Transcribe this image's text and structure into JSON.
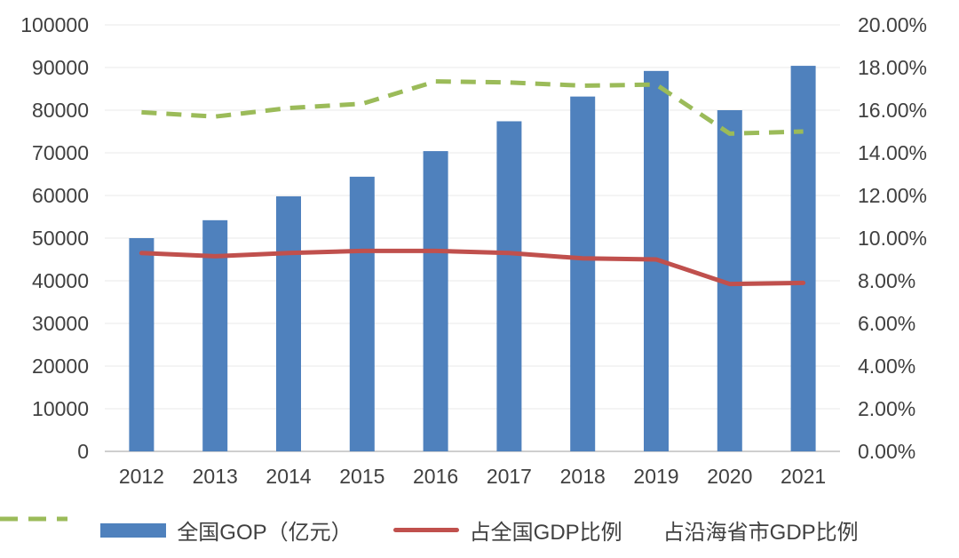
{
  "chart_data": {
    "type": "combo",
    "title": "",
    "categories": [
      "2012",
      "2013",
      "2014",
      "2015",
      "2016",
      "2017",
      "2018",
      "2019",
      "2020",
      "2021"
    ],
    "series": [
      {
        "name": "全国GOP（亿元）",
        "type": "bar",
        "axis": "left",
        "color": "#4F81BD",
        "values": [
          50000,
          54200,
          59800,
          64400,
          70400,
          77400,
          83200,
          89200,
          80000,
          90400
        ]
      },
      {
        "name": "占全国GDP比例",
        "type": "line",
        "style": "solid",
        "axis": "right",
        "color": "#C0504D",
        "values": [
          9.3,
          9.15,
          9.3,
          9.4,
          9.4,
          9.3,
          9.05,
          9.0,
          7.85,
          7.9
        ]
      },
      {
        "name": "占沿海省市GDP比例",
        "type": "line",
        "style": "dashed",
        "axis": "right",
        "color": "#9BBB59",
        "values": [
          15.9,
          15.7,
          16.1,
          16.3,
          17.35,
          17.3,
          17.15,
          17.2,
          14.9,
          15.0
        ]
      }
    ],
    "left_axis": {
      "min": 0,
      "max": 100000,
      "step": 10000,
      "tick_labels": [
        "0",
        "10000",
        "20000",
        "30000",
        "40000",
        "50000",
        "60000",
        "70000",
        "80000",
        "90000",
        "100000"
      ]
    },
    "right_axis": {
      "min": 0,
      "max": 20,
      "step": 2,
      "format": "percent2",
      "tick_labels": [
        "0.00%",
        "2.00%",
        "4.00%",
        "6.00%",
        "8.00%",
        "10.00%",
        "12.00%",
        "14.00%",
        "16.00%",
        "18.00%",
        "20.00%"
      ]
    },
    "grid": true,
    "grid_color": "#E8E8E8",
    "axis_line_color": "#BFBFBF",
    "text_color": "#404040",
    "legend_position": "bottom"
  }
}
